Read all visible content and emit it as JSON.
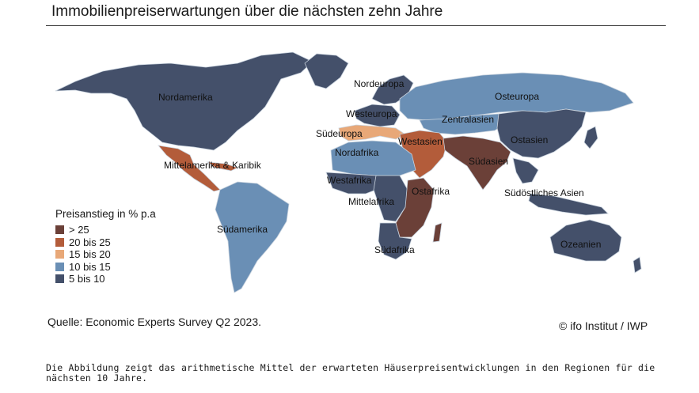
{
  "title": "Immobilienpreiserwartungen über die nächsten zehn Jahre",
  "colors": {
    "gt25": "#6b4038",
    "c20_25": "#b35c3a",
    "c15_20": "#e8a878",
    "c10_15": "#6a8fb5",
    "c5_10": "#44506a",
    "border": "#c9d3de"
  },
  "legend": {
    "title": "Preisanstieg in % p.a",
    "items": [
      {
        "label": "> 25",
        "color": "#6b4038"
      },
      {
        "label": "20 bis 25",
        "color": "#b35c3a"
      },
      {
        "label": "15 bis 20",
        "color": "#e8a878"
      },
      {
        "label": "10 bis 15",
        "color": "#6a8fb5"
      },
      {
        "label": "5 bis 10",
        "color": "#44506a"
      }
    ]
  },
  "regions": {
    "nordamerika": {
      "label": "Nordamerika",
      "category": "5 bis 10"
    },
    "mittelamerika": {
      "label": "Mittelamerika & Karibik",
      "category": "20 bis 25"
    },
    "suedamerika": {
      "label": "Südamerika",
      "category": "10 bis 15"
    },
    "nordeuropa": {
      "label": "Nordeuropa",
      "category": "5 bis 10"
    },
    "westeuropa": {
      "label": "Westeuropa",
      "category": "5 bis 10"
    },
    "suedeuropa": {
      "label": "Südeuropa",
      "category": "15 bis 20"
    },
    "osteuropa": {
      "label": "Osteuropa",
      "category": "10 bis 15"
    },
    "zentralasien": {
      "label": "Zentralasien",
      "category": "10 bis 15"
    },
    "westasien": {
      "label": "Westasien",
      "category": "20 bis 25"
    },
    "ostasien": {
      "label": "Ostasien",
      "category": "5 bis 10"
    },
    "suedasien": {
      "label": "Südasien",
      "category": "> 25"
    },
    "suedostasien": {
      "label": "Südöstliches Asien",
      "category": "5 bis 10"
    },
    "nordafrika": {
      "label": "Nordafrika",
      "category": "10 bis 15"
    },
    "westafrika": {
      "label": "Westafrika",
      "category": "5 bis 10"
    },
    "mittelafrika": {
      "label": "Mittelafrika",
      "category": "5 bis 10"
    },
    "ostafrika": {
      "label": "Ostafrika",
      "category": "> 25"
    },
    "suedafrika": {
      "label": "Südafrika",
      "category": "5 bis 10"
    },
    "ozeanien": {
      "label": "Ozeanien",
      "category": "5 bis 10"
    }
  },
  "source": "Quelle: Economic Experts Survey Q2 2023.",
  "credit": "© ifo Institut / IWP",
  "caption": "Die Abbildung zeigt das arithmetische Mittel der erwarteten Häuserpreisentwicklungen in den Regionen für die nächsten 10 Jahre."
}
